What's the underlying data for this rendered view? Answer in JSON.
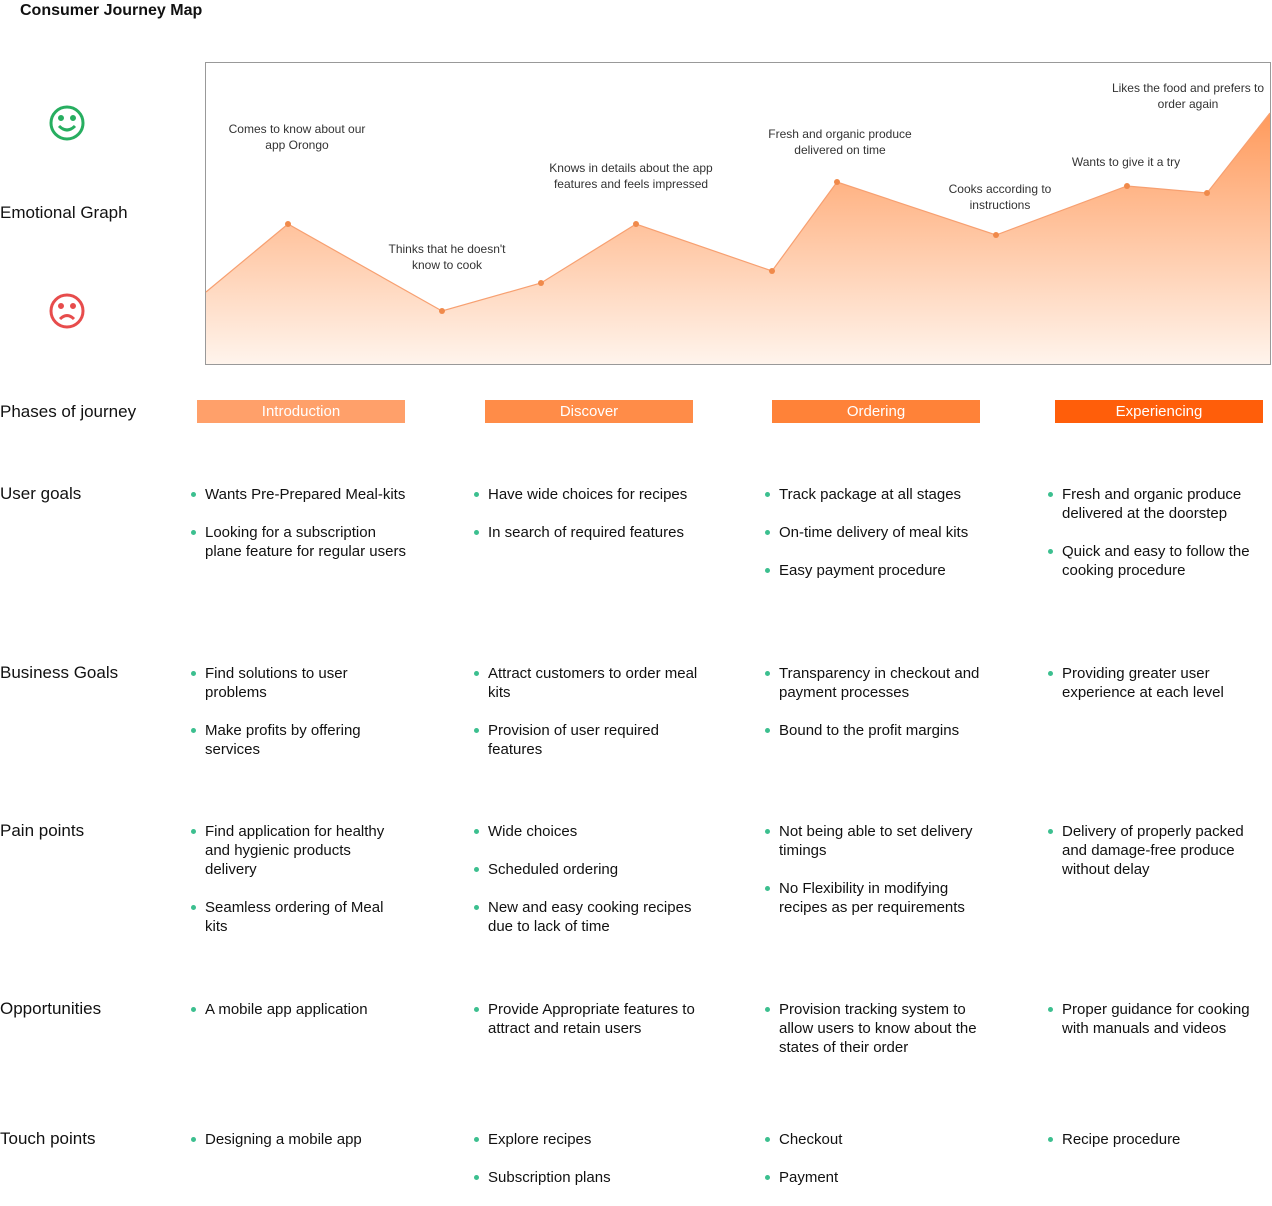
{
  "title": "Consumer Journey Map",
  "graph": {
    "label": "Emotional Graph",
    "annotations": [
      "Comes to know about our app Orongo",
      "Thinks that he doesn't know to cook",
      "Knows in details about the app features and feels impressed",
      "Fresh and organic produce delivered on time",
      "Cooks according to instructions",
      "Wants to give it a try",
      "Likes the food and prefers to order again"
    ]
  },
  "phases": {
    "label": "Phases of journey",
    "items": [
      "Introduction",
      "Discover",
      "Ordering",
      "Experiencing"
    ]
  },
  "rows": [
    {
      "label": "User goals",
      "columns": [
        [
          "Wants Pre-Prepared Meal-kits",
          "Looking for a subscription plane feature for regular users"
        ],
        [
          "Have wide choices for recipes",
          "In search of required features"
        ],
        [
          "Track package at all stages",
          "On-time delivery of meal kits",
          "Easy payment procedure"
        ],
        [
          "Fresh and organic produce delivered at the doorstep",
          "Quick and easy to follow the cooking procedure"
        ]
      ]
    },
    {
      "label": "Business Goals",
      "columns": [
        [
          "Find solutions to user problems",
          "Make profits by offering services"
        ],
        [
          "Attract customers to order meal kits",
          "Provision of user required features"
        ],
        [
          "Transparency in checkout and payment processes",
          "Bound to the profit margins"
        ],
        [
          "Providing greater user experience at each level"
        ]
      ]
    },
    {
      "label": "Pain points",
      "columns": [
        [
          "Find application for healthy and hygienic products delivery",
          "Seamless ordering of Meal kits"
        ],
        [
          "Wide choices",
          "Scheduled ordering",
          "New and easy cooking recipes due to lack of time"
        ],
        [
          "Not being able to set delivery timings",
          "No Flexibility in modifying recipes as per requirements"
        ],
        [
          "Delivery of properly packed and damage-free produce without delay"
        ]
      ]
    },
    {
      "label": "Opportunities",
      "columns": [
        [
          "A mobile app application"
        ],
        [
          "Provide Appropriate features to attract and retain users"
        ],
        [
          "Provision tracking system to allow users to know about the states of their order"
        ],
        [
          "Proper guidance for cooking with manuals and videos"
        ]
      ]
    },
    {
      "label": "Touch points",
      "columns": [
        [
          "Designing a mobile app"
        ],
        [
          "Explore recipes",
          "Subscription plans"
        ],
        [
          "Checkout",
          "Payment"
        ],
        [
          "Recipe procedure"
        ]
      ]
    }
  ]
}
